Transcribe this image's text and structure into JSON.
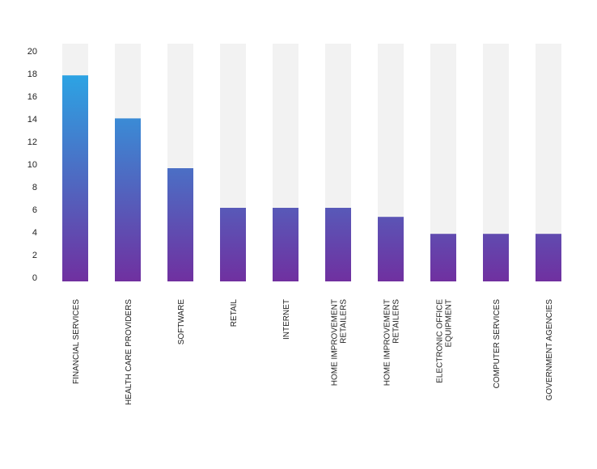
{
  "chart_data": {
    "type": "bar",
    "title": "",
    "xlabel": "",
    "ylabel": "",
    "ylim": [
      0,
      21
    ],
    "yticks": [
      0,
      2,
      4,
      6,
      8,
      10,
      12,
      14,
      16,
      18,
      20
    ],
    "grid": false,
    "legend": "none",
    "categories": [
      [
        "FINANCIAL SERVICES"
      ],
      [
        "HEALTH CARE PROVIDERS"
      ],
      [
        "SOFTWARE"
      ],
      [
        "RETAIL"
      ],
      [
        "INTERNET"
      ],
      [
        "HOME IMPROVEMENT",
        "RETAILERS"
      ],
      [
        "HOME IMPROVEMENT",
        "RETAILERS"
      ],
      [
        "ELECTRONIC OFFICE",
        "EQUIPMENT"
      ],
      [
        "COMPUTER SERVICES"
      ],
      [
        "GOVERNMENT AGENCIES"
      ]
    ],
    "values": [
      18.2,
      14.4,
      10,
      6.5,
      6.5,
      6.5,
      5.7,
      4.2,
      4.2,
      4.2
    ],
    "background_bar_value": 21,
    "colors": {
      "bar_top": "#22b5ee",
      "bar_bottom": "#7030a0",
      "background_bar": "#f2f2f2"
    }
  }
}
